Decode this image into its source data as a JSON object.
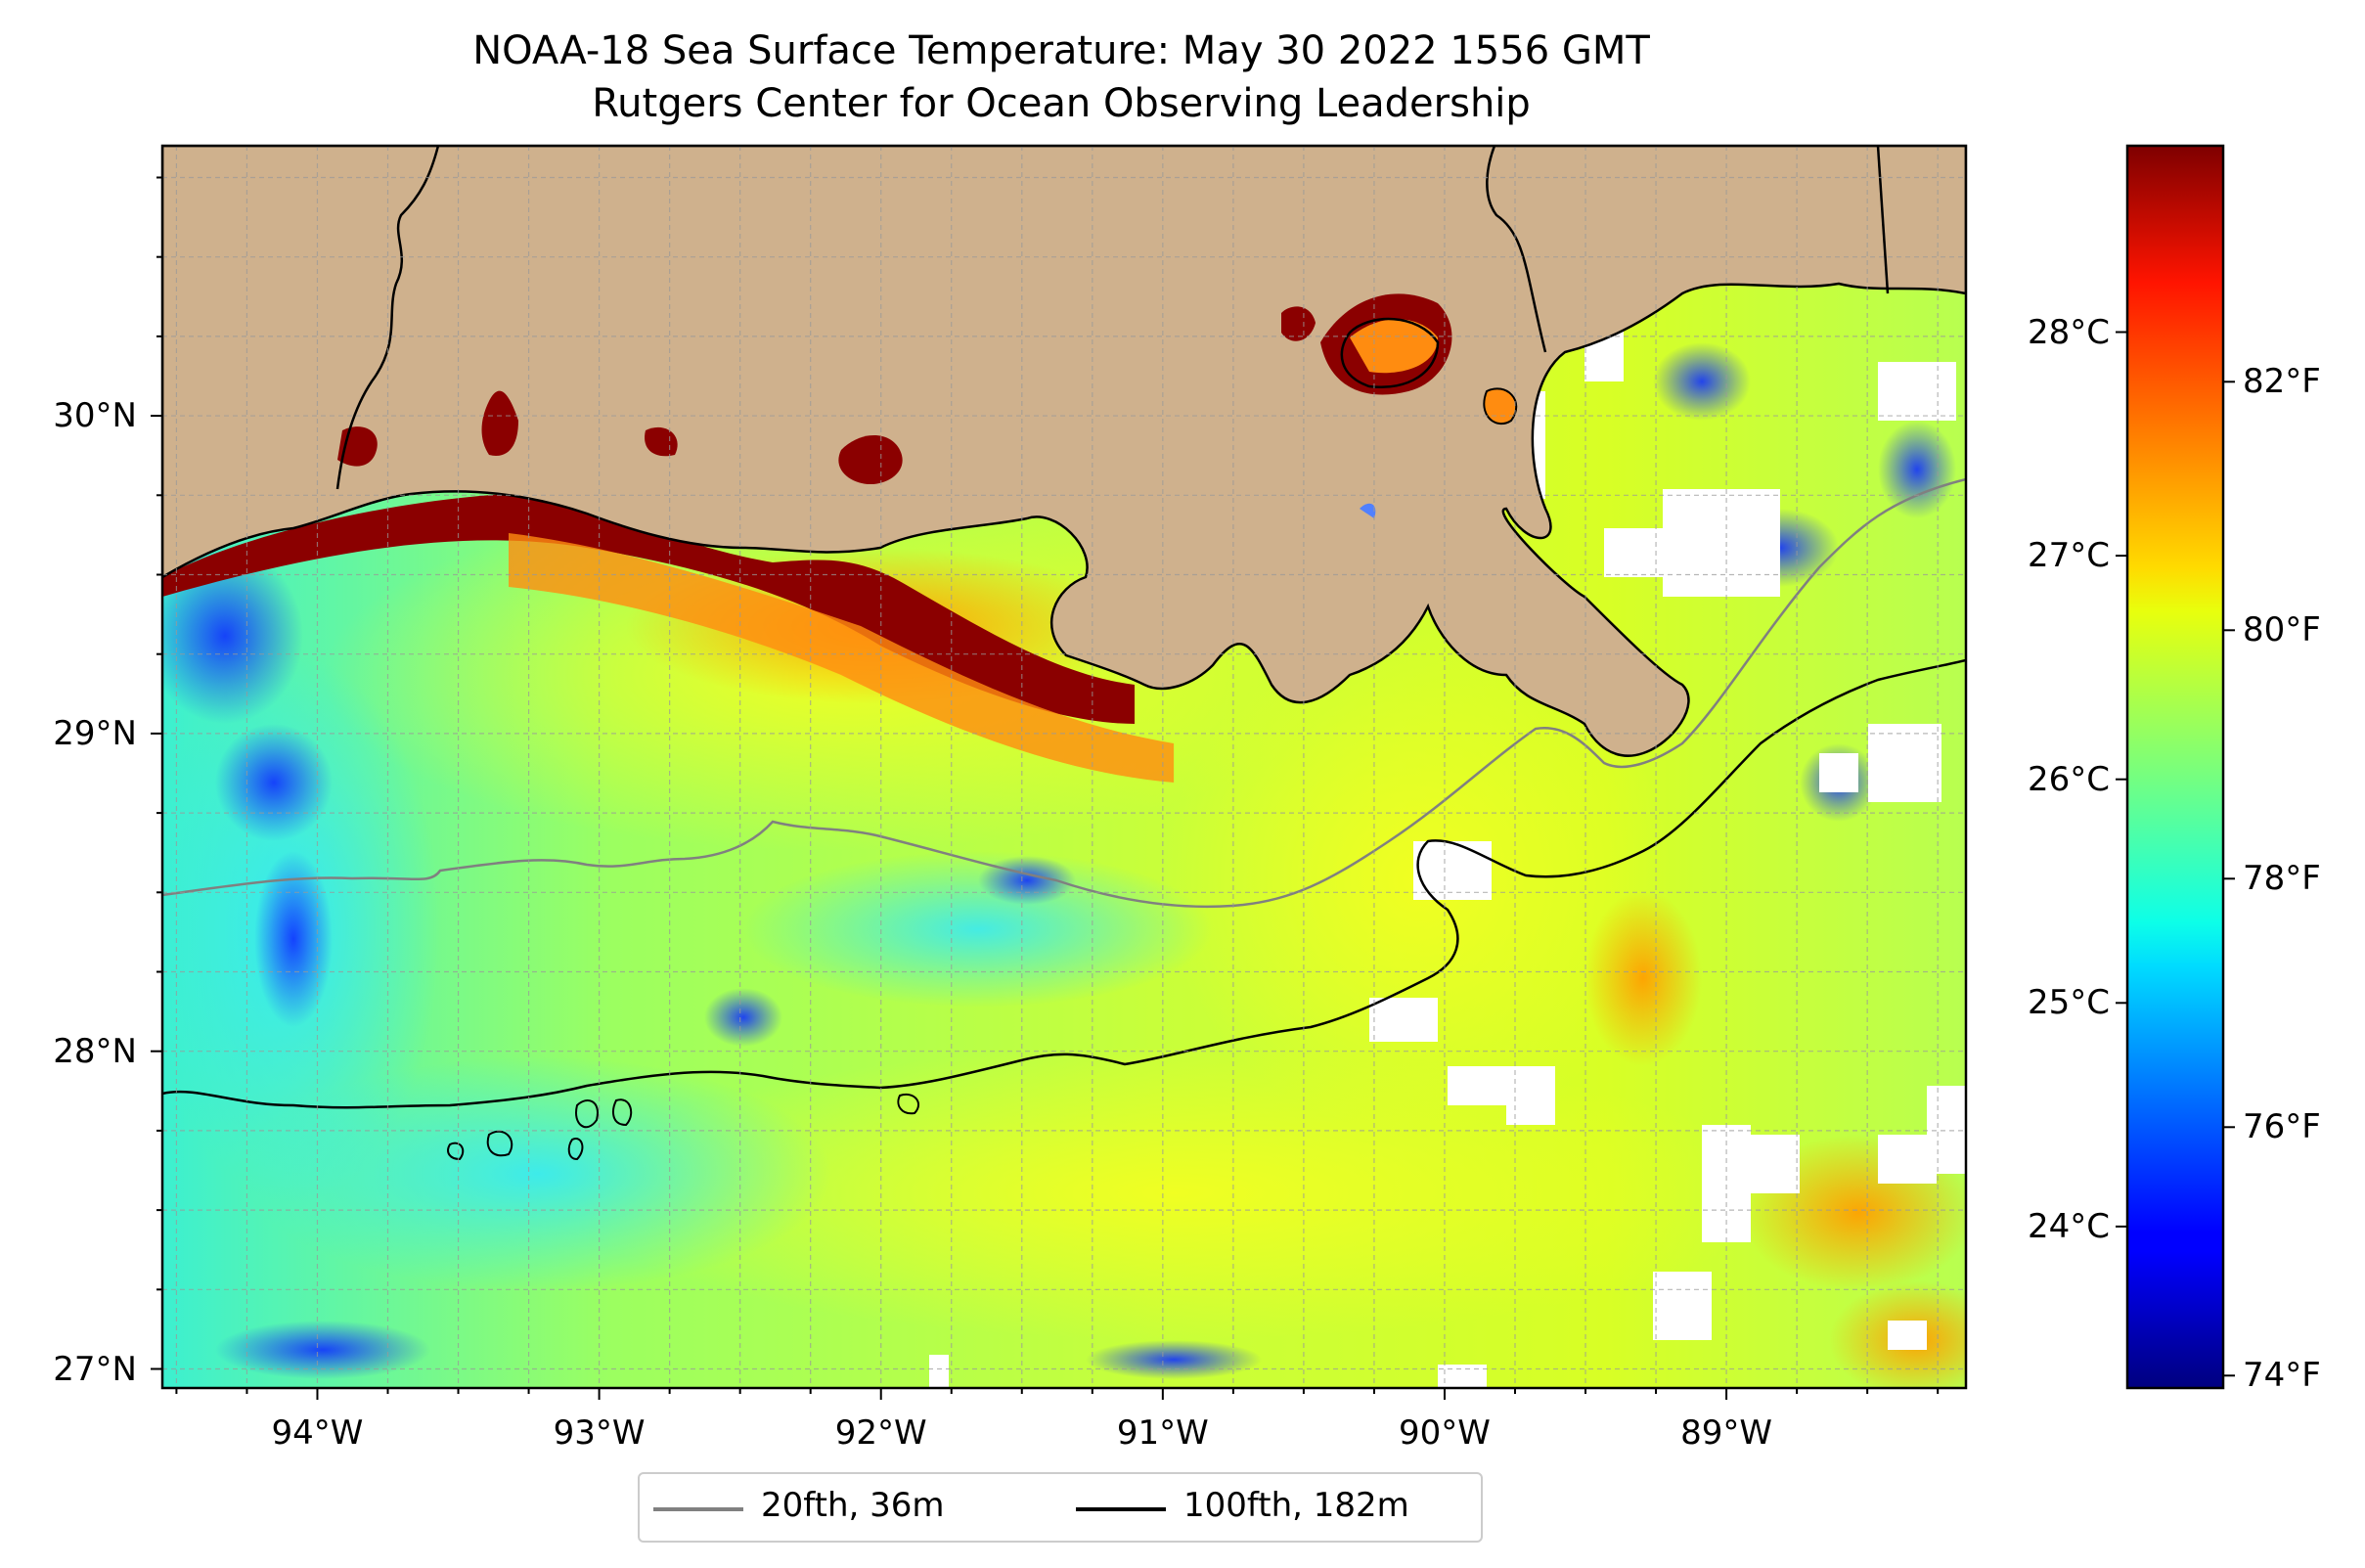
{
  "figure": {
    "title_line1": "NOAA-18 Sea Surface Temperature: May 30 2022 1556 GMT",
    "title_line2": "Rutgers Center for Ocean Observing Leadership"
  },
  "map": {
    "extent": {
      "lon_min": -94.55,
      "lon_max": -88.15,
      "lat_min": 26.94,
      "lat_max": 30.85
    },
    "x_ticks": [
      {
        "lon": -94,
        "label": "94°W"
      },
      {
        "lon": -93,
        "label": "93°W"
      },
      {
        "lon": -92,
        "label": "92°W"
      },
      {
        "lon": -91,
        "label": "91°W"
      },
      {
        "lon": -90,
        "label": "90°W"
      },
      {
        "lon": -89,
        "label": "89°W"
      }
    ],
    "y_ticks": [
      {
        "lat": 30,
        "label": "30°N"
      },
      {
        "lat": 29,
        "label": "29°N"
      },
      {
        "lat": 28,
        "label": "28°N"
      },
      {
        "lat": 27,
        "label": "27°N"
      }
    ],
    "colors": {
      "land": "#cfb18d",
      "coastline": "#000000",
      "contour_20fth": "#808080",
      "contour_100fth": "#000000",
      "gridline": "#999999"
    }
  },
  "colorbar": {
    "colormap": "jet",
    "celsius_ticks": [
      {
        "value": 24,
        "label": "24°C"
      },
      {
        "value": 25,
        "label": "25°C"
      },
      {
        "value": 26,
        "label": "26°C"
      },
      {
        "value": 27,
        "label": "27°C"
      },
      {
        "value": 28,
        "label": "28°C"
      }
    ],
    "fahrenheit_ticks": [
      {
        "value": 74,
        "label": "74°F"
      },
      {
        "value": 76,
        "label": "76°F"
      },
      {
        "value": 78,
        "label": "78°F"
      },
      {
        "value": 80,
        "label": "80°F"
      },
      {
        "value": 82,
        "label": "82°F"
      }
    ],
    "range_f": [
      73.9,
      83.9
    ]
  },
  "legend": {
    "items": [
      {
        "label": "20fth, 36m",
        "color": "#808080"
      },
      {
        "label": "100fth, 182m",
        "color": "#000000"
      }
    ]
  }
}
